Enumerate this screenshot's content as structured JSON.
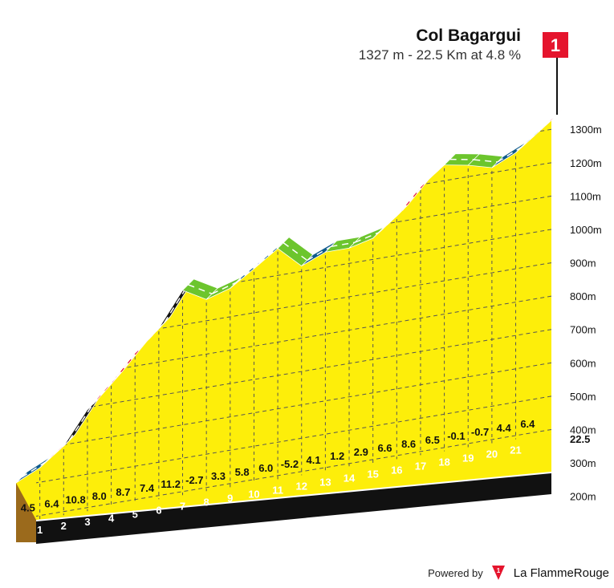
{
  "climb": {
    "name": "Col Bagargui",
    "subtitle": "1327 m - 22.5 Km at 4.8 %",
    "category": "1"
  },
  "footer": {
    "powered_by": "Powered by",
    "brand_prefix": "La Flamme",
    "brand_suffix": "Rouge"
  },
  "colors": {
    "fill": "#fdee0a",
    "red": "#e5142d",
    "black": "#111111",
    "blue": "#0f5a8c",
    "green": "#6cc52d",
    "base_side": "#9b6a1c"
  },
  "chart_data": {
    "type": "area",
    "title": "Col Bagargui",
    "subtitle": "1327 m - 22.5 Km at 4.8 %",
    "y_tick_labels": [
      "1300m",
      "1200m",
      "1100m",
      "1000m",
      "900m",
      "800m",
      "700m",
      "600m",
      "500m",
      "400m",
      "300m",
      "200m"
    ],
    "y_ticks": [
      1300,
      1200,
      1100,
      1000,
      900,
      800,
      700,
      600,
      500,
      400,
      300,
      200
    ],
    "ylim": [
      240,
      1327
    ],
    "xlim": [
      0,
      22.5
    ],
    "end_label": "22.5",
    "km_labels": [
      "1",
      "2",
      "3",
      "4",
      "5",
      "6",
      "7",
      "8",
      "9",
      "10",
      "11",
      "12",
      "13",
      "14",
      "15",
      "16",
      "17",
      "18",
      "19",
      "20",
      "21"
    ],
    "segments": [
      {
        "start": 0,
        "end": 1,
        "gradient": 4.5,
        "label": "4.5",
        "color": "blue"
      },
      {
        "start": 1,
        "end": 2,
        "gradient": 6.4,
        "label": "6.4",
        "color": "red"
      },
      {
        "start": 2,
        "end": 3,
        "gradient": 10.8,
        "label": "10.8",
        "color": "black"
      },
      {
        "start": 3,
        "end": 4,
        "gradient": 8.0,
        "label": "8.0",
        "color": "red"
      },
      {
        "start": 4,
        "end": 5,
        "gradient": 8.7,
        "label": "8.7",
        "color": "red"
      },
      {
        "start": 5,
        "end": 6,
        "gradient": 7.4,
        "label": "7.4",
        "color": "red"
      },
      {
        "start": 6,
        "end": 7,
        "gradient": 11.2,
        "label": "11.2",
        "color": "black"
      },
      {
        "start": 7,
        "end": 8,
        "gradient": -2.7,
        "label": "-2.7",
        "color": "green"
      },
      {
        "start": 8,
        "end": 9,
        "gradient": 3.3,
        "label": "3.3",
        "color": "green"
      },
      {
        "start": 9,
        "end": 10,
        "gradient": 5.8,
        "label": "5.8",
        "color": "blue"
      },
      {
        "start": 10,
        "end": 11,
        "gradient": 6.0,
        "label": "6.0",
        "color": "blue"
      },
      {
        "start": 11,
        "end": 12,
        "gradient": -5.2,
        "label": "-5.2",
        "color": "green"
      },
      {
        "start": 12,
        "end": 13,
        "gradient": 4.1,
        "label": "4.1",
        "color": "blue"
      },
      {
        "start": 13,
        "end": 14,
        "gradient": 1.2,
        "label": "1.2",
        "color": "green"
      },
      {
        "start": 14,
        "end": 15,
        "gradient": 2.9,
        "label": "2.9",
        "color": "green"
      },
      {
        "start": 15,
        "end": 16,
        "gradient": 6.6,
        "label": "6.6",
        "color": "red"
      },
      {
        "start": 16,
        "end": 17,
        "gradient": 8.6,
        "label": "8.6",
        "color": "red"
      },
      {
        "start": 17,
        "end": 18,
        "gradient": 6.5,
        "label": "6.5",
        "color": "red"
      },
      {
        "start": 18,
        "end": 19,
        "gradient": -0.1,
        "label": "-0.1",
        "color": "green"
      },
      {
        "start": 19,
        "end": 20,
        "gradient": -0.7,
        "label": "-0.7",
        "color": "green"
      },
      {
        "start": 20,
        "end": 21,
        "gradient": 4.4,
        "label": "4.4",
        "color": "blue"
      },
      {
        "start": 21,
        "end": 22,
        "gradient": 6.4,
        "label": "6.4",
        "color": "blue"
      },
      {
        "start": 22,
        "end": 22.5,
        "gradient": 6.4,
        "label": "",
        "color": "red"
      }
    ]
  }
}
